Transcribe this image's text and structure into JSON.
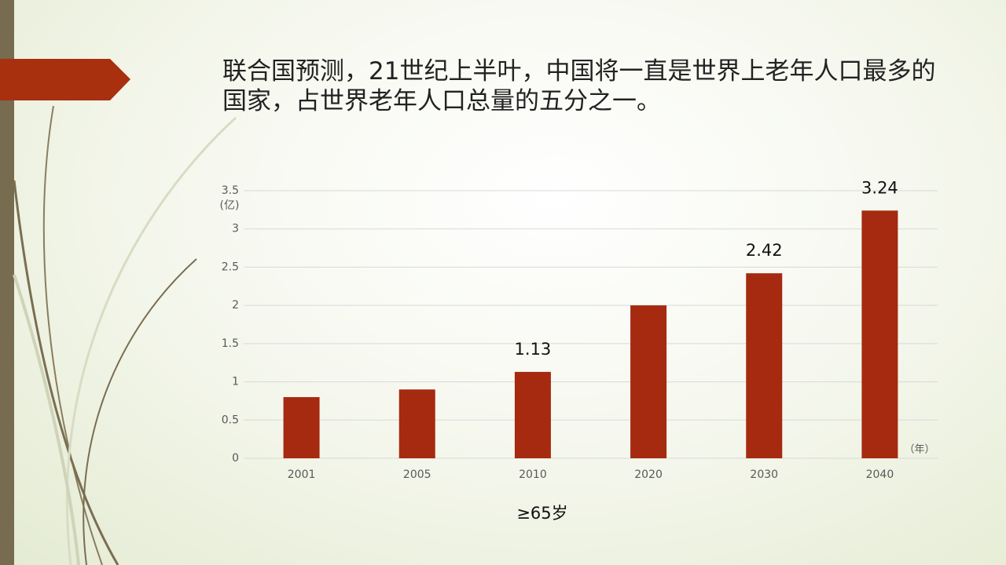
{
  "chart_data": {
    "type": "bar",
    "title": "联合国预测，21世纪上半叶，中国将一直是世界上老年人口最多的国家，占世界老年人口总量的五分之一。",
    "ylabel": "(亿)",
    "xlabel": "（年）",
    "categories": [
      "2001",
      "2005",
      "2010",
      "2020",
      "2030",
      "2040"
    ],
    "series": [
      {
        "name": "≥65岁",
        "color": "#a52a0f",
        "values": [
          0.8,
          0.9,
          1.13,
          2.0,
          2.42,
          3.24
        ],
        "value_labels": [
          null,
          null,
          "1.13",
          null,
          "2.42",
          "3.24"
        ]
      }
    ],
    "ylim": [
      0,
      3.5
    ],
    "yticks": [
      0,
      0.5,
      1,
      1.5,
      2,
      2.5,
      3,
      3.5
    ],
    "grid": true,
    "legend": "bottom"
  }
}
